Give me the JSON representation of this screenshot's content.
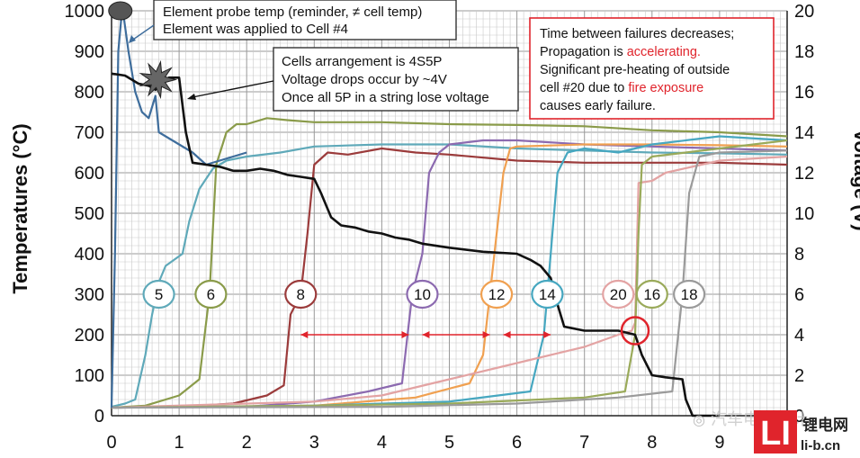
{
  "chart_data": {
    "type": "line",
    "title": "",
    "xlabel": "",
    "ylabel": "Temperatures (°C)",
    "y2label": "Voltage (V)",
    "xlim": [
      0,
      10
    ],
    "ylim": [
      0,
      1000
    ],
    "y2lim": [
      0,
      20
    ],
    "x_ticks": [
      "0",
      "1",
      "2",
      "3",
      "4",
      "5",
      "6",
      "7",
      "8",
      "9"
    ],
    "y_ticks": [
      "0",
      "100",
      "200",
      "300",
      "400",
      "500",
      "600",
      "700",
      "800",
      "900",
      "1000"
    ],
    "y2_ticks": [
      "0",
      "2",
      "4",
      "6",
      "8",
      "10",
      "12",
      "14",
      "16",
      "18",
      "20"
    ],
    "grid": true,
    "series": [
      {
        "name": "5",
        "color": "#5fa9b9",
        "axis": "y",
        "points": [
          [
            0,
            22
          ],
          [
            0.2,
            30
          ],
          [
            0.35,
            40
          ],
          [
            0.5,
            150
          ],
          [
            0.6,
            250
          ],
          [
            0.7,
            330
          ],
          [
            0.8,
            370
          ],
          [
            1.05,
            400
          ],
          [
            1.15,
            480
          ],
          [
            1.3,
            560
          ],
          [
            1.5,
            610
          ],
          [
            1.7,
            630
          ],
          [
            2.0,
            640
          ],
          [
            2.5,
            650
          ],
          [
            3.0,
            665
          ],
          [
            4.0,
            670
          ],
          [
            5.0,
            670
          ],
          [
            6.0,
            660
          ],
          [
            7.0,
            655
          ],
          [
            8.0,
            650
          ],
          [
            9.0,
            648
          ],
          [
            10.0,
            645
          ]
        ]
      },
      {
        "name": "6",
        "color": "#8a9b4a",
        "axis": "y",
        "points": [
          [
            0,
            20
          ],
          [
            0.5,
            25
          ],
          [
            1.0,
            50
          ],
          [
            1.3,
            90
          ],
          [
            1.45,
            300
          ],
          [
            1.55,
            620
          ],
          [
            1.7,
            700
          ],
          [
            1.85,
            720
          ],
          [
            2.0,
            720
          ],
          [
            2.3,
            735
          ],
          [
            2.6,
            730
          ],
          [
            3.0,
            725
          ],
          [
            4.0,
            725
          ],
          [
            5.0,
            720
          ],
          [
            6.0,
            718
          ],
          [
            7.0,
            715
          ],
          [
            8.0,
            705
          ],
          [
            9.0,
            700
          ],
          [
            10.0,
            690
          ]
        ]
      },
      {
        "name": "8",
        "color": "#9b3b3b",
        "axis": "y",
        "points": [
          [
            0,
            20
          ],
          [
            1.0,
            22
          ],
          [
            1.8,
            30
          ],
          [
            2.3,
            50
          ],
          [
            2.55,
            75
          ],
          [
            2.65,
            250
          ],
          [
            2.8,
            300
          ],
          [
            2.9,
            450
          ],
          [
            3.0,
            620
          ],
          [
            3.2,
            650
          ],
          [
            3.5,
            645
          ],
          [
            4.0,
            660
          ],
          [
            4.5,
            650
          ],
          [
            5.0,
            645
          ],
          [
            6.0,
            630
          ],
          [
            7.0,
            625
          ],
          [
            8.0,
            625
          ],
          [
            9.0,
            625
          ],
          [
            10.0,
            620
          ]
        ]
      },
      {
        "name": "10",
        "color": "#8c6ab0",
        "axis": "y",
        "points": [
          [
            0,
            20
          ],
          [
            2.0,
            22
          ],
          [
            3.0,
            35
          ],
          [
            3.8,
            60
          ],
          [
            4.3,
            80
          ],
          [
            4.45,
            300
          ],
          [
            4.6,
            400
          ],
          [
            4.7,
            600
          ],
          [
            4.85,
            650
          ],
          [
            5.0,
            670
          ],
          [
            5.5,
            680
          ],
          [
            6.0,
            680
          ],
          [
            7.0,
            670
          ],
          [
            8.0,
            665
          ],
          [
            9.0,
            660
          ],
          [
            10.0,
            655
          ]
        ]
      },
      {
        "name": "12",
        "color": "#f0a050",
        "axis": "y",
        "points": [
          [
            0,
            20
          ],
          [
            3.0,
            25
          ],
          [
            4.5,
            45
          ],
          [
            5.3,
            80
          ],
          [
            5.5,
            150
          ],
          [
            5.6,
            300
          ],
          [
            5.7,
            450
          ],
          [
            5.8,
            600
          ],
          [
            5.9,
            660
          ],
          [
            6.0,
            665
          ],
          [
            7.0,
            670
          ],
          [
            8.0,
            670
          ],
          [
            9.0,
            668
          ],
          [
            10.0,
            665
          ]
        ]
      },
      {
        "name": "14",
        "color": "#46a7c0",
        "axis": "y",
        "points": [
          [
            0,
            20
          ],
          [
            3.0,
            25
          ],
          [
            5.0,
            35
          ],
          [
            6.2,
            60
          ],
          [
            6.4,
            200
          ],
          [
            6.5,
            400
          ],
          [
            6.6,
            600
          ],
          [
            6.75,
            650
          ],
          [
            7.0,
            660
          ],
          [
            7.5,
            650
          ],
          [
            8.0,
            670
          ],
          [
            9.0,
            690
          ],
          [
            10.0,
            680
          ]
        ]
      },
      {
        "name": "20",
        "color": "#e3a3a3",
        "axis": "y",
        "points": [
          [
            0,
            20
          ],
          [
            3.0,
            35
          ],
          [
            4.0,
            50
          ],
          [
            5.0,
            90
          ],
          [
            6.0,
            130
          ],
          [
            7.0,
            170
          ],
          [
            7.5,
            200
          ],
          [
            7.7,
            210
          ],
          [
            7.75,
            230
          ],
          [
            7.8,
            575
          ],
          [
            8.0,
            580
          ],
          [
            8.2,
            600
          ],
          [
            9.0,
            630
          ],
          [
            10.0,
            640
          ]
        ]
      },
      {
        "name": "16",
        "color": "#9aaa5a",
        "axis": "y",
        "points": [
          [
            0,
            20
          ],
          [
            3.0,
            25
          ],
          [
            5.0,
            30
          ],
          [
            7.0,
            45
          ],
          [
            7.6,
            60
          ],
          [
            7.75,
            200
          ],
          [
            7.8,
            450
          ],
          [
            7.85,
            620
          ],
          [
            8.0,
            640
          ],
          [
            8.5,
            650
          ],
          [
            9.0,
            660
          ],
          [
            10.0,
            680
          ]
        ]
      },
      {
        "name": "18",
        "color": "#9a9a9a",
        "axis": "y",
        "points": [
          [
            0,
            20
          ],
          [
            4.0,
            22
          ],
          [
            6.0,
            30
          ],
          [
            7.5,
            45
          ],
          [
            8.3,
            60
          ],
          [
            8.45,
            300
          ],
          [
            8.55,
            550
          ],
          [
            8.7,
            640
          ],
          [
            9.0,
            650
          ],
          [
            10.0,
            655
          ]
        ]
      },
      {
        "name": "Element probe temp",
        "color": "#3e6d9c",
        "axis": "y",
        "points": [
          [
            0,
            20
          ],
          [
            0.05,
            400
          ],
          [
            0.1,
            900
          ],
          [
            0.16,
            1010
          ],
          [
            0.25,
            900
          ],
          [
            0.35,
            800
          ],
          [
            0.45,
            750
          ],
          [
            0.55,
            735
          ],
          [
            0.65,
            790
          ],
          [
            0.7,
            700
          ],
          [
            0.8,
            690
          ],
          [
            1.0,
            670
          ],
          [
            1.2,
            650
          ],
          [
            1.4,
            620
          ],
          [
            1.6,
            630
          ],
          [
            1.8,
            640
          ],
          [
            2.0,
            650
          ]
        ]
      },
      {
        "name": "Voltage",
        "color": "#111111",
        "axis": "y2",
        "points": [
          [
            0,
            16.9
          ],
          [
            0.2,
            16.8
          ],
          [
            0.4,
            16.4
          ],
          [
            0.55,
            16.3
          ],
          [
            0.65,
            16.1
          ],
          [
            0.7,
            16.4
          ],
          [
            0.85,
            16.7
          ],
          [
            1.0,
            16.7
          ],
          [
            1.1,
            14.0
          ],
          [
            1.2,
            12.5
          ],
          [
            1.4,
            12.4
          ],
          [
            1.6,
            12.3
          ],
          [
            1.8,
            12.1
          ],
          [
            2.0,
            12.1
          ],
          [
            2.2,
            12.2
          ],
          [
            2.4,
            12.1
          ],
          [
            2.6,
            11.9
          ],
          [
            2.8,
            11.8
          ],
          [
            3.0,
            11.7
          ],
          [
            3.1,
            11.0
          ],
          [
            3.25,
            9.8
          ],
          [
            3.4,
            9.4
          ],
          [
            3.6,
            9.3
          ],
          [
            3.8,
            9.1
          ],
          [
            4.0,
            9.0
          ],
          [
            4.2,
            8.8
          ],
          [
            4.4,
            8.7
          ],
          [
            4.6,
            8.5
          ],
          [
            5.0,
            8.3
          ],
          [
            5.5,
            8.1
          ],
          [
            6.0,
            8.0
          ],
          [
            6.2,
            7.7
          ],
          [
            6.35,
            7.4
          ],
          [
            6.5,
            6.8
          ],
          [
            6.6,
            5.5
          ],
          [
            6.7,
            4.4
          ],
          [
            7.0,
            4.2
          ],
          [
            7.5,
            4.2
          ],
          [
            7.75,
            4.0
          ],
          [
            7.85,
            3.0
          ],
          [
            8.0,
            2.0
          ],
          [
            8.2,
            1.9
          ],
          [
            8.45,
            1.8
          ],
          [
            8.5,
            0.8
          ],
          [
            8.6,
            0.0
          ],
          [
            9.0,
            0.0
          ]
        ]
      }
    ],
    "annotations": [
      {
        "text_lines": [
          "Element probe temp (reminder, ≠ cell temp)",
          "Element was applied to Cell #4"
        ]
      },
      {
        "text_lines": [
          "Cells arrangement is 4S5P",
          "Voltage drops occur by ~4V",
          "Once all 5P in a string lose voltage"
        ]
      },
      {
        "text_parts": [
          [
            {
              "t": "Time between failures decreases;"
            }
          ],
          [
            {
              "t": "Propagation is "
            },
            {
              "t": "accelerating.",
              "red": true
            }
          ],
          [
            {
              "t": "Significant pre-heating of outside"
            }
          ],
          [
            {
              "t": "cell #20 due to "
            },
            {
              "t": "fire exposure",
              "red": true
            }
          ],
          [
            {
              "t": "causes early failure."
            }
          ]
        ]
      }
    ],
    "interval_arrows": [
      [
        2.8,
        4.4
      ],
      [
        4.6,
        5.6
      ],
      [
        5.8,
        6.5
      ]
    ],
    "accent_color": "#e0242c"
  },
  "watermark": {
    "wechat_text": "汽车电子设计",
    "logo_text": "LI",
    "site_cn": "锂电网",
    "site_url": "li-b.cn"
  }
}
